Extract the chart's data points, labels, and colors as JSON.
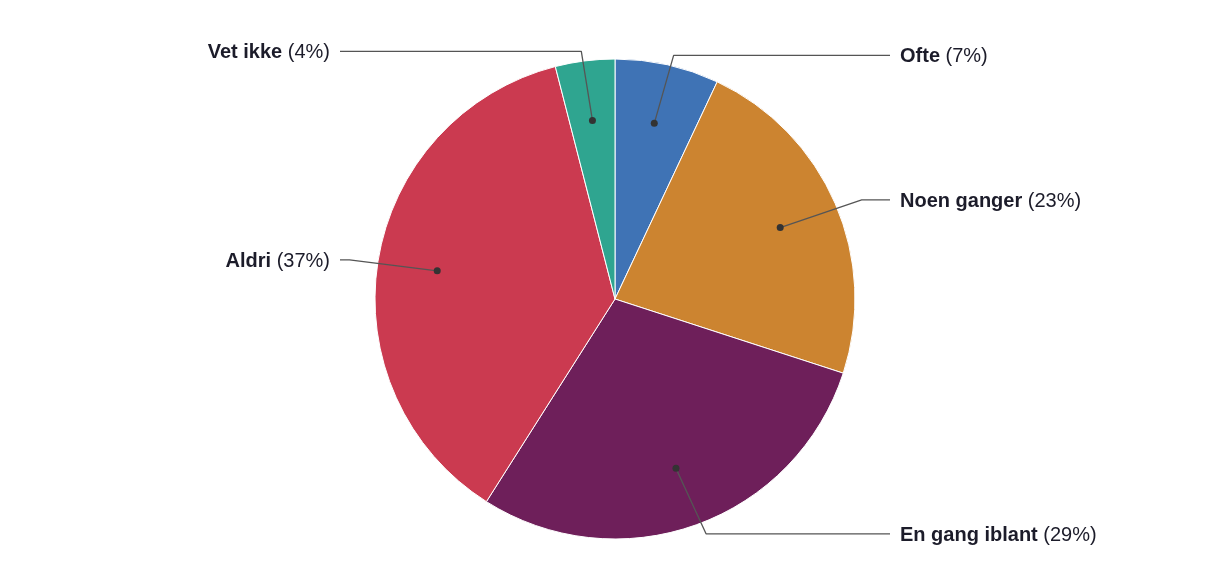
{
  "chart_data": {
    "type": "pie",
    "categories": [
      "Ofte",
      "Noen ganger",
      "En gang iblant",
      "Aldri",
      "Vet ikke"
    ],
    "values": [
      7,
      23,
      29,
      37,
      4
    ],
    "value_labels": [
      "(7%)",
      "(23%)",
      "(29%)",
      "(37%)",
      "(4%)"
    ],
    "colors": [
      "#3f73b5",
      "#cc8430",
      "#6e1f5a",
      "#cb3a50",
      "#2fa590"
    ]
  }
}
